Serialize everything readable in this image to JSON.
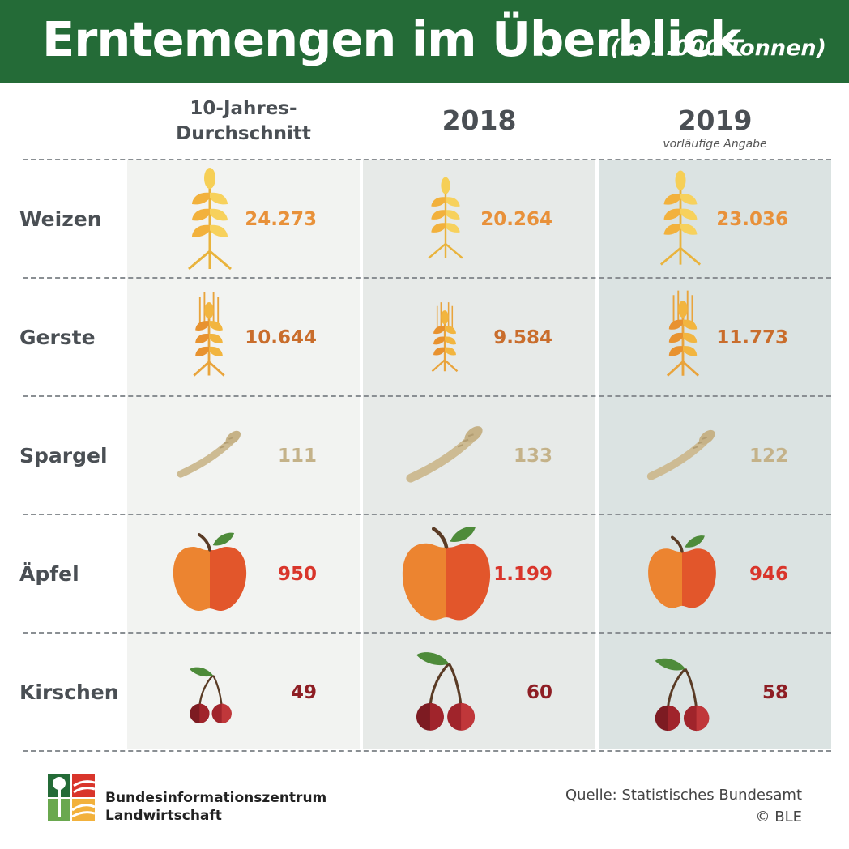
{
  "title": "Erntemengen im Überblick",
  "subtitle": "(in 1.000 Tonnen)",
  "columns": {
    "c0_line1": "10-Jahres-",
    "c0_line2": "Durchschnitt",
    "c1": "2018",
    "c2": "2019",
    "c2_note": "vorläufige Angabe"
  },
  "rows": {
    "weizen": {
      "label": "Weizen",
      "values": [
        "24.273",
        "20.264",
        "23.036"
      ]
    },
    "gerste": {
      "label": "Gerste",
      "values": [
        "10.644",
        "9.584",
        "11.773"
      ]
    },
    "spargel": {
      "label": "Spargel",
      "values": [
        "111",
        "133",
        "122"
      ]
    },
    "aepfel": {
      "label": "Äpfel",
      "values": [
        "950",
        "1.199",
        "946"
      ]
    },
    "kirschen": {
      "label": "Kirschen",
      "values": [
        "49",
        "60",
        "58"
      ]
    }
  },
  "colors": {
    "weizen": "#e8913a",
    "gerste": "#c96d2c",
    "spargel": "#c4b289",
    "aepfel": "#d9352b",
    "kirschen": "#8e1e24"
  },
  "chart_data": {
    "type": "table",
    "categories": [
      "10-Jahres-Durchschnitt",
      "2018",
      "2019"
    ],
    "series": [
      {
        "name": "Weizen",
        "values": [
          24273,
          20264,
          23036
        ]
      },
      {
        "name": "Gerste",
        "values": [
          10644,
          9584,
          11773
        ]
      },
      {
        "name": "Spargel",
        "values": [
          111,
          133,
          122
        ]
      },
      {
        "name": "Äpfel",
        "values": [
          950,
          1199,
          946
        ]
      },
      {
        "name": "Kirschen",
        "values": [
          49,
          60,
          58
        ]
      }
    ]
  },
  "icons": [
    "wheat-icon",
    "barley-icon",
    "asparagus-icon",
    "apple-icon",
    "cherry-icon"
  ],
  "footer": {
    "org_line1": "Bundesinformationszentrum",
    "org_line2": "Landwirtschaft",
    "source": "Quelle: Statistisches Bundesamt",
    "copyright": "© BLE"
  }
}
